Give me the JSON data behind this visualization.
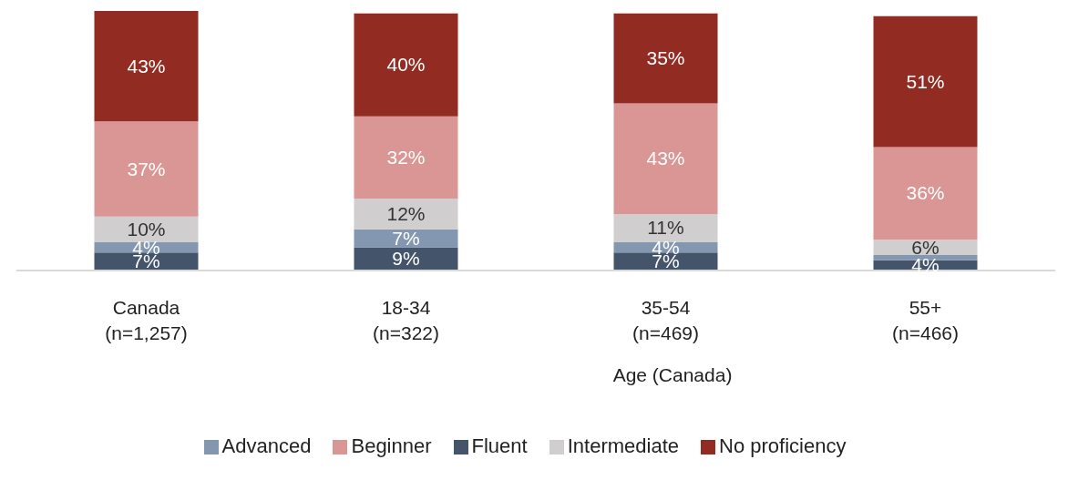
{
  "chart_data": {
    "type": "bar",
    "stacked": true,
    "categories": [
      "Canada\n(n=1,257)",
      "18-34\n(n=322)",
      "35-54\n(n=469)",
      "55+\n(n=466)"
    ],
    "series": [
      {
        "name": "Fluent",
        "color": "#44546a",
        "values": [
          7,
          9,
          7,
          4
        ],
        "value_labels": [
          "7%",
          "9%",
          "7%",
          "4%"
        ]
      },
      {
        "name": "Advanced",
        "color": "#8497b0",
        "values": [
          4,
          7,
          4,
          2
        ],
        "value_labels": [
          "4%",
          "7%",
          "4%",
          null
        ]
      },
      {
        "name": "Intermediate",
        "color": "#d0cece",
        "values": [
          10,
          12,
          11,
          6
        ],
        "value_labels": [
          "10%",
          "12%",
          "11%",
          "6%"
        ]
      },
      {
        "name": "Beginner",
        "color": "#da9694",
        "values": [
          37,
          32,
          43,
          36
        ],
        "value_labels": [
          "37%",
          "32%",
          "43%",
          "36%"
        ]
      },
      {
        "name": "No proficiency",
        "color": "#922b21",
        "values": [
          43,
          40,
          35,
          51
        ],
        "value_labels": [
          "43%",
          "40%",
          "35%",
          "51%"
        ]
      }
    ],
    "annotations": [
      "Age (Canada)"
    ],
    "legend": "bottom"
  }
}
